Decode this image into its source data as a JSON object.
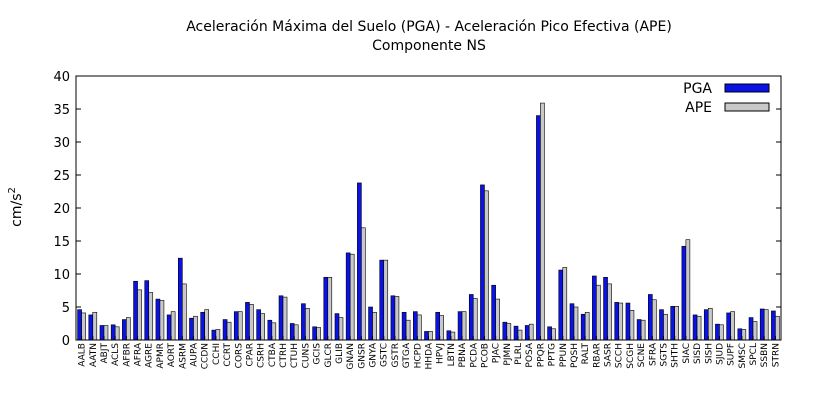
{
  "chart_data": {
    "type": "bar",
    "title": "Aceleración Máxima del Suelo (PGA) -  Aceleración Pico Efectiva (APE)",
    "subtitle": "Componente NS",
    "xlabel": "",
    "ylabel_base": "cm/s",
    "ylabel_sup": "2",
    "ylim": [
      0,
      40
    ],
    "yticks": [
      "0",
      "5",
      "10",
      "15",
      "20",
      "25",
      "30",
      "35",
      "40"
    ],
    "legend_position": "top-right",
    "colors": {
      "PGA": "#0a12e6",
      "APE": "#c8c8c8",
      "axis": "#000000"
    },
    "categories": [
      "AALB",
      "AATN",
      "ABJT",
      "ACLS",
      "AFBR",
      "AFRA",
      "AGRE",
      "APMR",
      "AORT",
      "ASRM",
      "AUPA",
      "CCDN",
      "CCHI",
      "CCRT",
      "CORS",
      "CPAR",
      "CSRH",
      "CTBA",
      "CTRH",
      "CTUH",
      "CUNS",
      "GCIS",
      "GLCR",
      "GLIB",
      "GNAN",
      "GNSR",
      "GNYA",
      "GSTC",
      "GSTR",
      "GTGA",
      "HCPD",
      "HHDA",
      "HPVJ",
      "LBTN",
      "PBNA",
      "PCDA",
      "PCOB",
      "PJAC",
      "PJMN",
      "PLRL",
      "POSA",
      "PPQR",
      "PPTG",
      "PPUN",
      "PQSH",
      "RALT",
      "RBAR",
      "SASR",
      "SCCH",
      "SCGH",
      "SCNE",
      "SFRA",
      "SGTS",
      "SHTH",
      "SIAC",
      "SISD",
      "SISH",
      "SJUD",
      "SUPF",
      "SMSC",
      "SPCL",
      "SSBN",
      "STRN"
    ],
    "series": [
      {
        "name": "PGA",
        "values": [
          4.6,
          3.8,
          2.2,
          2.3,
          3.1,
          8.9,
          9.0,
          6.2,
          3.8,
          12.4,
          3.3,
          4.2,
          1.5,
          3.1,
          4.3,
          5.7,
          4.6,
          3.0,
          6.7,
          2.5,
          5.5,
          2.0,
          9.5,
          4.0,
          13.2,
          23.8,
          5.0,
          12.1,
          6.7,
          4.2,
          4.3,
          1.3,
          4.2,
          1.4,
          4.3,
          6.9,
          23.5,
          8.3,
          2.7,
          2.1,
          2.2,
          34.0,
          2.0,
          10.6,
          5.5,
          3.9,
          9.7,
          9.5,
          5.7,
          5.6,
          3.1,
          6.9,
          4.6,
          5.1,
          14.2,
          3.8,
          4.6,
          2.4,
          4.1,
          1.7,
          3.4,
          4.7,
          4.4
        ]
      },
      {
        "name": "APE",
        "values": [
          4.1,
          4.2,
          2.2,
          2.0,
          3.4,
          7.6,
          7.2,
          6.0,
          4.3,
          8.5,
          3.6,
          4.6,
          1.6,
          2.7,
          4.3,
          5.4,
          4.0,
          2.6,
          6.5,
          2.3,
          4.8,
          1.9,
          9.5,
          3.4,
          13.0,
          17.0,
          4.2,
          12.1,
          6.6,
          3.0,
          3.8,
          1.3,
          3.7,
          1.2,
          4.3,
          6.3,
          22.6,
          6.2,
          2.5,
          1.5,
          2.4,
          35.9,
          1.7,
          11.0,
          5.0,
          4.2,
          8.3,
          8.5,
          5.6,
          4.5,
          3.0,
          6.1,
          3.9,
          5.1,
          15.2,
          3.6,
          4.8,
          2.3,
          4.3,
          1.6,
          2.8,
          4.6,
          3.6
        ]
      }
    ]
  }
}
